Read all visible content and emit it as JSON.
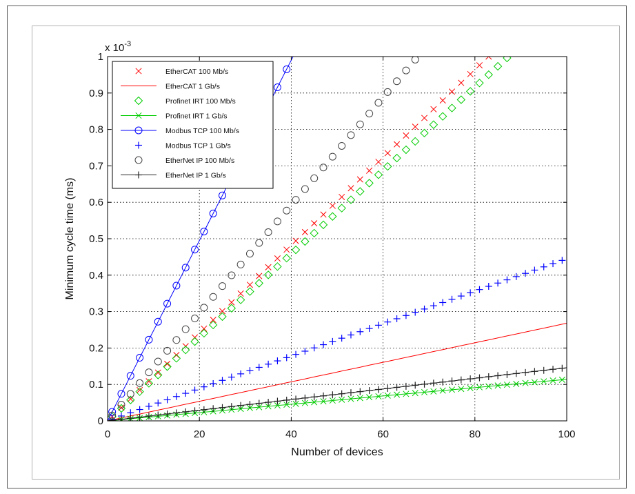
{
  "chart_data": {
    "type": "line",
    "xlabel": "Number of devices",
    "ylabel": "Minimum cycle time (ms)",
    "xlim": [
      0,
      100
    ],
    "ylim": [
      0,
      1
    ],
    "y_exponent_label": "x 10",
    "y_exponent_power": "-3",
    "xticks": [
      "0",
      "20",
      "40",
      "60",
      "80",
      "100"
    ],
    "yticks": [
      "0",
      "0.1",
      "0.2",
      "0.3",
      "0.4",
      "0.5",
      "0.6",
      "0.7",
      "0.8",
      "0.9",
      "1"
    ],
    "grid": true,
    "legend_position": "top-left",
    "x": [
      1,
      3,
      5,
      7,
      9,
      11,
      13,
      15,
      17,
      19,
      21,
      23,
      25,
      27,
      29,
      31,
      33,
      35,
      37,
      39,
      41,
      43,
      45,
      47,
      49,
      51,
      53,
      55,
      57,
      59,
      61,
      63,
      65,
      67,
      69,
      71,
      73,
      75,
      77,
      79,
      81,
      83,
      85,
      87,
      89,
      91,
      93,
      95,
      97,
      99
    ],
    "series": [
      {
        "name": "EtherCAT 100 Mb/s",
        "slope": 0.01205,
        "intercept": 0.0,
        "color": "#ff0000",
        "marker": "x",
        "line": false
      },
      {
        "name": "EtherCAT 1 Gb/s",
        "slope": 0.00268,
        "intercept": 0.0,
        "color": "#ff0000",
        "marker": "none",
        "line": true
      },
      {
        "name": "Profinet IRT 100 Mb/s",
        "slope": 0.01145,
        "intercept": 0.0,
        "color": "#00cc00",
        "marker": "diamond",
        "line": false
      },
      {
        "name": "Profinet IRT 1 Gb/s",
        "slope": 0.00114,
        "intercept": 0.0,
        "color": "#00cc00",
        "marker": "x",
        "line": true
      },
      {
        "name": "Modbus TCP 100 Mb/s",
        "slope": 0.02475,
        "intercept": 0.0,
        "color": "#0000ff",
        "marker": "circle",
        "line": true
      },
      {
        "name": "Modbus TCP 1 Gb/s",
        "slope": 0.00445,
        "intercept": 0.0,
        "color": "#0000ff",
        "marker": "plus",
        "line": false
      },
      {
        "name": "EtherNet IP 100 Mb/s",
        "slope": 0.0148,
        "intercept": 0.0,
        "color": "#444444",
        "marker": "circle",
        "line": false
      },
      {
        "name": "EtherNet IP 1 Gb/s",
        "slope": 0.00146,
        "intercept": 0.0,
        "color": "#222222",
        "marker": "plus",
        "line": true
      }
    ]
  }
}
